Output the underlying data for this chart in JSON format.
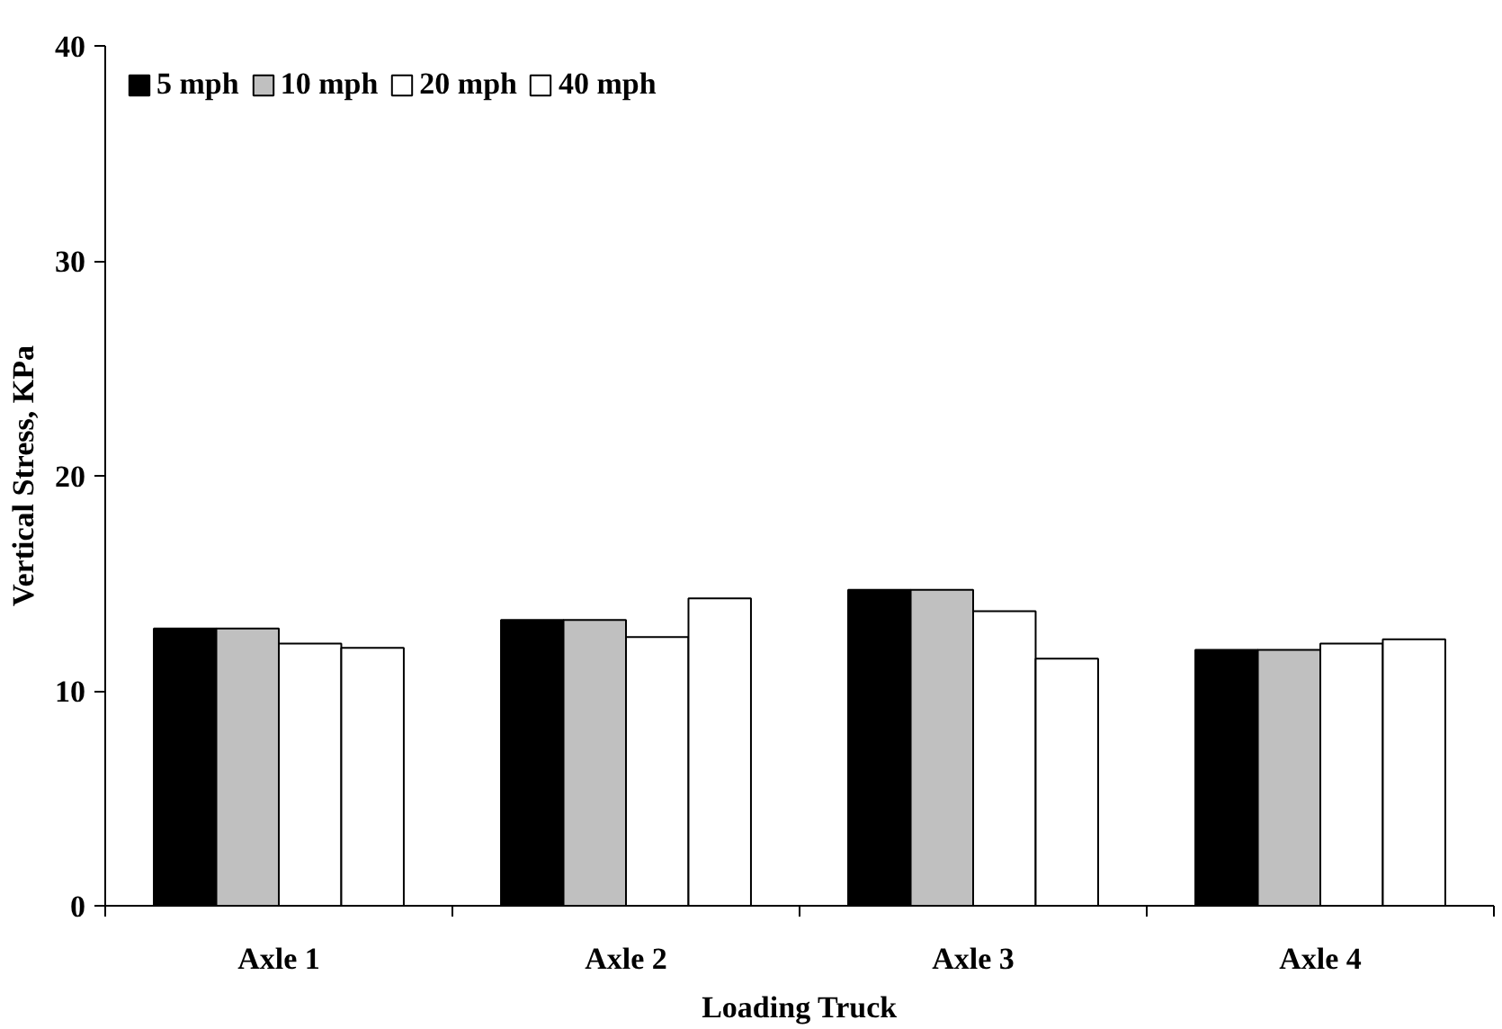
{
  "chart_data": {
    "type": "bar",
    "xlabel": "Loading Truck",
    "ylabel": "Vertical Stress, KPa",
    "categories": [
      "Axle 1",
      "Axle 2",
      "Axle 3",
      "Axle 4"
    ],
    "series": [
      {
        "name": "5 mph",
        "color": "#000000",
        "values": [
          12.9,
          13.3,
          14.7,
          11.9
        ]
      },
      {
        "name": "10 mph",
        "color": "#c0c0c0",
        "values": [
          12.9,
          13.3,
          14.7,
          11.9
        ]
      },
      {
        "name": "20 mph",
        "color": "#ffffff",
        "values": [
          12.2,
          12.5,
          13.7,
          12.2
        ]
      },
      {
        "name": "40 mph",
        "color": "#ffffff",
        "values": [
          12.0,
          14.3,
          11.5,
          12.4
        ]
      }
    ],
    "ylim": [
      0,
      40
    ],
    "yticks": [
      0,
      10,
      20,
      30,
      40
    ],
    "grid": false,
    "legend": "top left"
  }
}
